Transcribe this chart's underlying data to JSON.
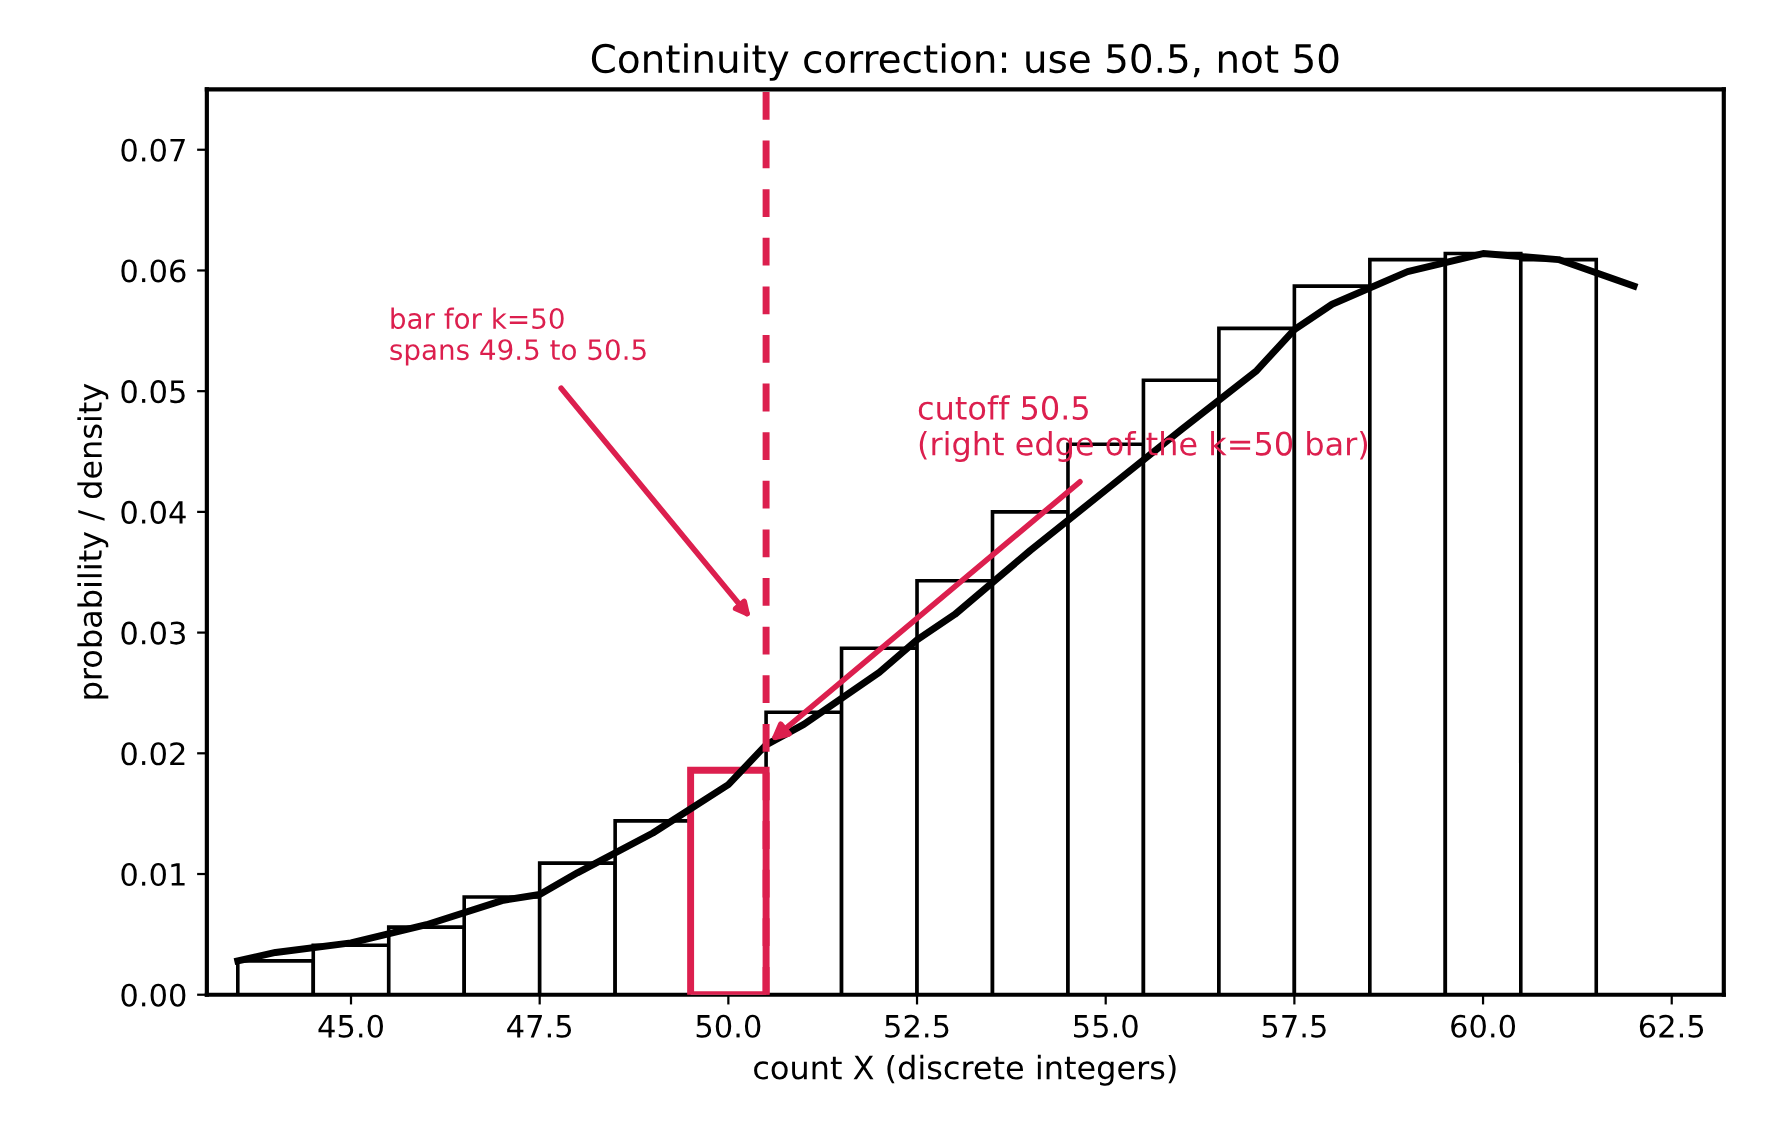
{
  "chart_data": {
    "type": "histogram",
    "title": "Continuity correction: use 50.5, not 50",
    "xlabel": "count X (discrete integers)",
    "ylabel": "probability / density",
    "bins": [
      43.5,
      44.5,
      45.5,
      46.5,
      47.5,
      48.5,
      49.5,
      50.5,
      51.5,
      52.5,
      53.5,
      54.5,
      55.5,
      56.5,
      57.5,
      58.5,
      59.5,
      60.5,
      61.5
    ],
    "values": [
      0.0028,
      0.0041,
      0.0056,
      0.0081,
      0.0109,
      0.0144,
      0.0186,
      0.0234,
      0.0287,
      0.0343,
      0.04,
      0.0456,
      0.0509,
      0.0552,
      0.0587,
      0.0609,
      0.0614,
      0.0609
    ],
    "colors": [
      "#000000",
      "#000000",
      "#000000",
      "#000000",
      "#000000",
      "#000000",
      "#dc1f4e",
      "#000000",
      "#000000",
      "#000000",
      "#000000",
      "#000000",
      "#000000",
      "#000000",
      "#000000",
      "#000000",
      "#000000",
      "#000000"
    ],
    "series": [
      {
        "type": "line",
        "color": "#000000",
        "x": [
          43.5,
          44,
          45,
          46,
          47,
          47.5,
          48,
          49,
          50,
          50.5,
          51,
          52,
          52.5,
          53,
          54,
          55,
          56,
          57,
          57.5,
          58,
          59,
          60,
          61,
          62
        ],
        "values": [
          0.0028,
          0.0035,
          0.0043,
          0.0058,
          0.0078,
          0.0083,
          0.0101,
          0.0134,
          0.0174,
          0.0207,
          0.0224,
          0.0267,
          0.0294,
          0.0315,
          0.0368,
          0.0418,
          0.0468,
          0.0517,
          0.0551,
          0.0572,
          0.0599,
          0.0614,
          0.0609,
          0.0587
        ]
      }
    ],
    "ref_lines": [
      {
        "axis": "x",
        "value": 50.5,
        "color": "#dc1f4e",
        "line_style": "dashed"
      }
    ],
    "annotations": [
      "bar for k=50\nspans 49.5 to 50.5",
      {
        "text": "cutoff 50.5\n(right edge of the k=50 bar)",
        "x": 50.5,
        "y": 0.0207
      }
    ],
    "xlim": [
      43.09,
      63.19
    ],
    "ylim": [
      0,
      0.075
    ],
    "xticks": [
      {
        "value": 45,
        "label": "45.0"
      },
      47.5,
      {
        "value": 50,
        "label": "50.0"
      },
      52.5,
      {
        "value": 55,
        "label": "55.0"
      },
      57.5,
      {
        "value": 60,
        "label": "60.0"
      },
      62.5
    ],
    "yticks": [
      {
        "value": 0,
        "label": "0.00"
      },
      0.01,
      0.02,
      0.03,
      0.04,
      0.05,
      0.06,
      0.07
    ],
    "grid": false,
    "legend": false
  }
}
